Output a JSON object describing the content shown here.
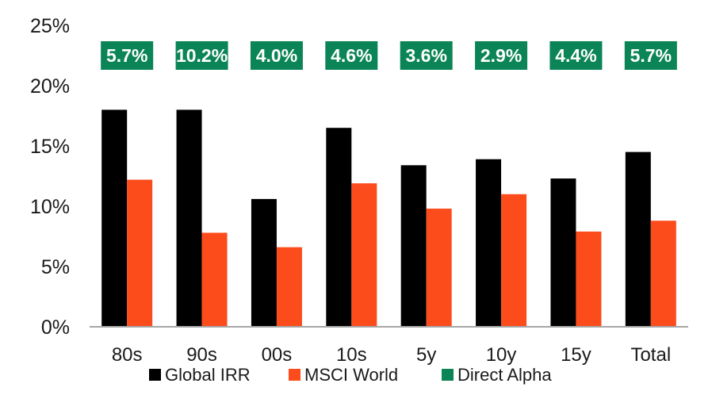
{
  "chart_data": {
    "type": "bar",
    "categories": [
      "80s",
      "90s",
      "00s",
      "10s",
      "5y",
      "10y",
      "15y",
      "Total"
    ],
    "series": [
      {
        "name": "Global IRR",
        "color": "#000000",
        "values": [
          18.0,
          18.0,
          10.6,
          16.5,
          13.4,
          13.9,
          12.3,
          14.5
        ]
      },
      {
        "name": "MSCI World",
        "color": "#fc4c1c",
        "values": [
          12.2,
          7.8,
          6.6,
          11.9,
          9.8,
          11.0,
          7.9,
          8.8
        ]
      }
    ],
    "direct_alpha": {
      "name": "Direct Alpha",
      "color": "#0b8457",
      "labels": [
        "5.7%",
        "10.2%",
        "4.0%",
        "4.6%",
        "3.6%",
        "2.9%",
        "4.4%",
        "5.7%"
      ]
    },
    "y_ticks": [
      "0%",
      "5%",
      "10%",
      "15%",
      "20%",
      "25%"
    ],
    "ylim": [
      0,
      25
    ],
    "grid": false,
    "legend_position": "bottom",
    "title": "",
    "xlabel": "",
    "ylabel": ""
  }
}
